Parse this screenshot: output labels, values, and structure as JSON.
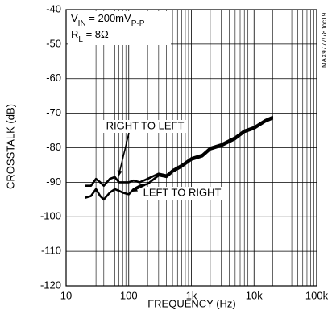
{
  "chart_data": {
    "type": "line",
    "xlabel": "FREQUENCY (Hz)",
    "ylabel": "CROSSTALK (dB)",
    "x": [
      20,
      25,
      30,
      35,
      40,
      50,
      60,
      70,
      80,
      100,
      120,
      150,
      200,
      300,
      400,
      500,
      700,
      1000,
      1500,
      2000,
      3000,
      5000,
      7000,
      10000,
      15000,
      20000
    ],
    "series": [
      {
        "name": "RIGHT TO LEFT",
        "color": "#000000",
        "values": [
          -91,
          -91,
          -89,
          -90,
          -91,
          -89,
          -88.5,
          -90,
          -90,
          -90,
          -89.5,
          -90,
          -89,
          -87.5,
          -88,
          -86.5,
          -85,
          -83,
          -82,
          -80,
          -79,
          -77,
          -75,
          -74,
          -72,
          -71
        ]
      },
      {
        "name": "LEFT TO RIGHT",
        "color": "#000000",
        "values": [
          -94.5,
          -94,
          -92,
          -94,
          -95,
          -93,
          -92,
          -92.5,
          -93,
          -93.5,
          -92,
          -91,
          -90.5,
          -88,
          -88.5,
          -87,
          -85.5,
          -83.5,
          -82.5,
          -80.5,
          -79.5,
          -77.5,
          -75.5,
          -74.5,
          -72.5,
          -71.5
        ]
      }
    ],
    "xlog": true,
    "minor_grid": true,
    "grid": true,
    "xlim": [
      10,
      100000
    ],
    "xticks": [
      10,
      100,
      {
        "value": 1000,
        "label": "1k"
      },
      {
        "value": 10000,
        "label": "10k"
      },
      {
        "value": 100000,
        "label": "100k"
      }
    ],
    "ylim": [
      -120,
      -40
    ],
    "yticks": [
      -120,
      -110,
      -100,
      -90,
      -80,
      -70,
      -60,
      -50,
      -40
    ],
    "annotations": [
      [
        {
          "text": "V"
        },
        {
          "text": "IN",
          "sub": true
        },
        {
          "text": " = 200mV"
        },
        {
          "text": "P-P",
          "sub": true
        }
      ],
      [
        {
          "text": "R"
        },
        {
          "text": "L",
          "sub": true
        },
        {
          "text": " = 8Ω"
        }
      ]
    ],
    "figure_id": "MAX9777/78 toc19"
  }
}
